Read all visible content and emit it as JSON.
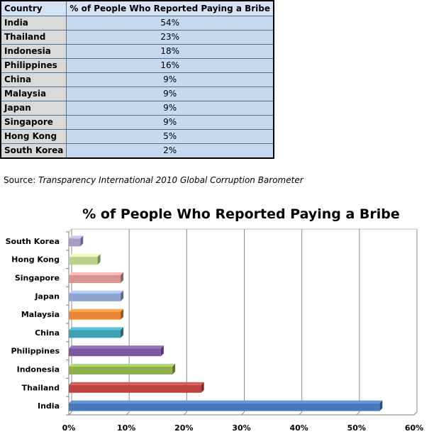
{
  "table": {
    "headers": [
      "Country",
      "% of People Who Reported Paying a Bribe"
    ],
    "rows": [
      {
        "country": "India",
        "value": "54%"
      },
      {
        "country": "Thailand",
        "value": "23%"
      },
      {
        "country": "Indonesia",
        "value": "18%"
      },
      {
        "country": "Philippines",
        "value": "16%"
      },
      {
        "country": "China",
        "value": "9%"
      },
      {
        "country": "Malaysia",
        "value": "9%"
      },
      {
        "country": "Japan",
        "value": "9%"
      },
      {
        "country": "Singapore",
        "value": "9%"
      },
      {
        "country": "Hong Kong",
        "value": "5%"
      },
      {
        "country": "South Korea",
        "value": "2%"
      }
    ]
  },
  "source": {
    "prefix": "Source: ",
    "name": "Transparency International 2010 Global Corruption Barometer"
  },
  "chart_data": {
    "type": "bar",
    "orientation": "horizontal",
    "title": "% of People Who Reported Paying a Bribe",
    "categories": [
      "India",
      "Thailand",
      "Indonesia",
      "Philippines",
      "China",
      "Malaysia",
      "Japan",
      "Singapore",
      "Hong Kong",
      "South Korea"
    ],
    "values": [
      54,
      23,
      18,
      16,
      9,
      9,
      9,
      9,
      5,
      2
    ],
    "colors": [
      "#4a7ab5",
      "#b94441",
      "#8fb04f",
      "#7a5a9c",
      "#3f9fb3",
      "#e9883a",
      "#8ea4cf",
      "#d69594",
      "#bbd28e",
      "#a99ac6"
    ],
    "xlim": [
      0,
      60
    ],
    "xticks": [
      0,
      10,
      20,
      30,
      40,
      50,
      60
    ],
    "xtick_labels": [
      "0%",
      "10%",
      "20%",
      "30%",
      "40%",
      "50%",
      "60%"
    ],
    "grid": true,
    "legend": "none"
  }
}
